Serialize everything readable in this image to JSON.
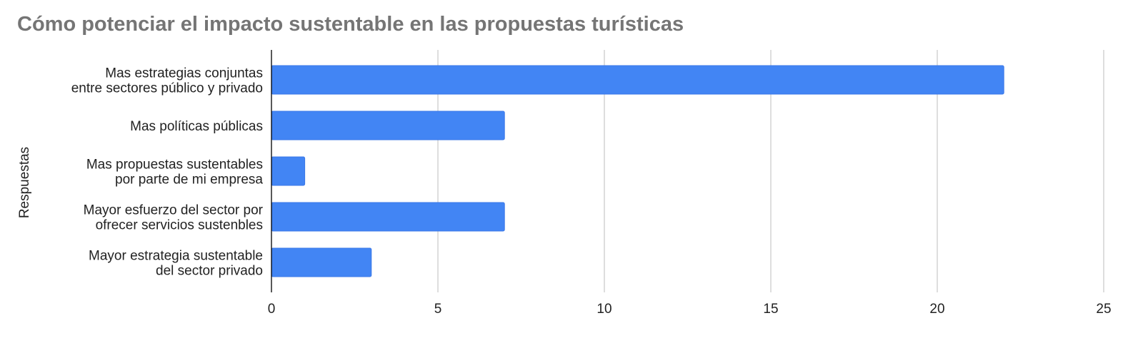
{
  "chart_data": {
    "type": "bar",
    "orientation": "horizontal",
    "title": "Cómo potenciar el impacto sustentable en las propuestas turísticas",
    "ylabel": "Respuestas",
    "xlabel": "",
    "categories": [
      [
        "Mas estrategias conjuntas",
        "entre sectores público y privado"
      ],
      [
        "Mas políticas públicas"
      ],
      [
        "Mas propuestas sustentables",
        "por parte de mi empresa"
      ],
      [
        "Mayor esfuerzo del sector por",
        "ofrecer servicios sustenbles"
      ],
      [
        "Mayor estrategia sustentable",
        "del sector privado"
      ]
    ],
    "values": [
      22,
      7,
      1,
      7,
      3
    ],
    "xlim": [
      0,
      25
    ],
    "xticks": [
      0,
      5,
      10,
      15,
      20,
      25
    ],
    "grid": "vertical",
    "legend": "none",
    "bar_color": "#4285f4",
    "bar_stroke": "#3b78e7",
    "grid_color": "#cccccc",
    "axis_color": "#000000"
  }
}
